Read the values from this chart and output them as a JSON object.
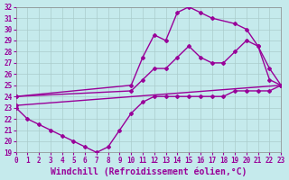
{
  "xlabel": "Windchill (Refroidissement éolien,°C)",
  "xlim": [
    0,
    23
  ],
  "ylim": [
    19,
    32
  ],
  "xticks": [
    0,
    1,
    2,
    3,
    4,
    5,
    6,
    7,
    8,
    9,
    10,
    11,
    12,
    13,
    14,
    15,
    16,
    17,
    18,
    19,
    20,
    21,
    22,
    23
  ],
  "yticks": [
    19,
    20,
    21,
    22,
    23,
    24,
    25,
    26,
    27,
    28,
    29,
    30,
    31,
    32
  ],
  "bg_color": "#c5eaec",
  "line_color": "#990099",
  "line_width": 1.0,
  "marker": "D",
  "marker_size": 2.0,
  "tick_fontsize": 5.5,
  "xlabel_fontsize": 7,
  "grid_color": "#aacccc",
  "grid_linewidth": 0.5,
  "line1_x": [
    0,
    10,
    11,
    12,
    13,
    14,
    15,
    16,
    17,
    19,
    20,
    21,
    22,
    23
  ],
  "line1_y": [
    24,
    25,
    27.5,
    29.5,
    29.0,
    31.5,
    32,
    31.5,
    31,
    30.5,
    30,
    28.5,
    25.5,
    25
  ],
  "line2_x": [
    0,
    10,
    11,
    12,
    13,
    14,
    15,
    16,
    17,
    18,
    19,
    20,
    21,
    22,
    23
  ],
  "line2_y": [
    24,
    24.5,
    25.5,
    26.5,
    26.5,
    27.5,
    28.5,
    27.5,
    27,
    27,
    28,
    29,
    28.5,
    26.5,
    25
  ],
  "line3_x": [
    0,
    23
  ],
  "line3_y": [
    23.2,
    25.0
  ],
  "line4_x": [
    0,
    1,
    2,
    3,
    4,
    5,
    6,
    7,
    8,
    9,
    10,
    11,
    12,
    13,
    14,
    15,
    16,
    17,
    18,
    19,
    20,
    21,
    22,
    23
  ],
  "line4_y": [
    23,
    22,
    21.5,
    21,
    20.5,
    20,
    19.5,
    19,
    19.5,
    21.0,
    22.5,
    23.5,
    24,
    24,
    24,
    24,
    24,
    24,
    24,
    24.5,
    24.5,
    24.5,
    24.5,
    25
  ]
}
